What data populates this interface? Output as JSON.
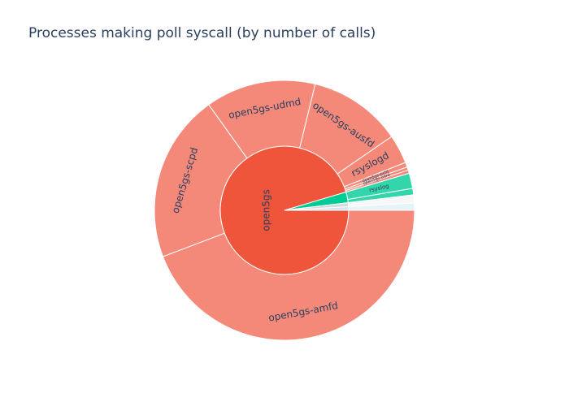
{
  "title": "Processes making poll syscall (by number of calls)",
  "chart_data": {
    "type": "sunburst",
    "title": "Processes making poll syscall (by number of calls)",
    "colors": {
      "open5gs": "#ef553b",
      "open5gs_child": "#f4897a",
      "other": "#00cc96",
      "other_child": "#33d6ab",
      "tiny": "#d9d9d9",
      "border": "#ffffff"
    },
    "parents": [
      {
        "name": "open5gs",
        "label": "open5gs",
        "color": "#ef553b",
        "value": 95.4,
        "children": [
          {
            "name": "amfd",
            "label": "open5gs-amfd",
            "value": 44.2,
            "color": "#f4897a"
          },
          {
            "name": "scpd",
            "label": "open5gs-scpd",
            "value": 20.9,
            "color": "#f4897a"
          },
          {
            "name": "udmd",
            "label": "open5gs-udmd",
            "value": 13.7,
            "color": "#f4897a"
          },
          {
            "name": "ausfd",
            "label": "open5gs-ausfd",
            "value": 11.6,
            "color": "#f4897a"
          },
          {
            "name": "rsyslogd",
            "label": "rsyslogd",
            "value": 3.6,
            "color": "#f4897a"
          },
          {
            "name": "pcfd",
            "label": "open5gs-pcfd",
            "value": 0.6,
            "color": "#f4897a"
          },
          {
            "name": "udrd",
            "label": "open5gs-udrd",
            "value": 0.4,
            "color": "#f4897a"
          },
          {
            "name": "smfd",
            "label": "",
            "value": 0.4,
            "color": "#f4897a"
          }
        ]
      },
      {
        "name": "other",
        "label": "",
        "color": "#00cc96",
        "value": 2.7,
        "children": [
          {
            "name": "rsyslog",
            "label": "rsyslog",
            "value": 1.9,
            "color": "#33d6ab"
          },
          {
            "name": "other-small",
            "label": "",
            "value": 0.8,
            "color": "#33d6ab"
          }
        ]
      },
      {
        "name": "tiny-a",
        "label": "",
        "color": "#d9d9d9",
        "value": 1.0,
        "children": [
          {
            "name": "tiny-a-child",
            "label": "",
            "value": 1.0,
            "color": "#f7f7f7"
          }
        ]
      },
      {
        "name": "tiny-b",
        "label": "",
        "color": "#cfe8f3",
        "value": 0.9,
        "children": [
          {
            "name": "tiny-b-child",
            "label": "",
            "value": 0.9,
            "color": "#e6f4fa"
          }
        ]
      }
    ]
  }
}
